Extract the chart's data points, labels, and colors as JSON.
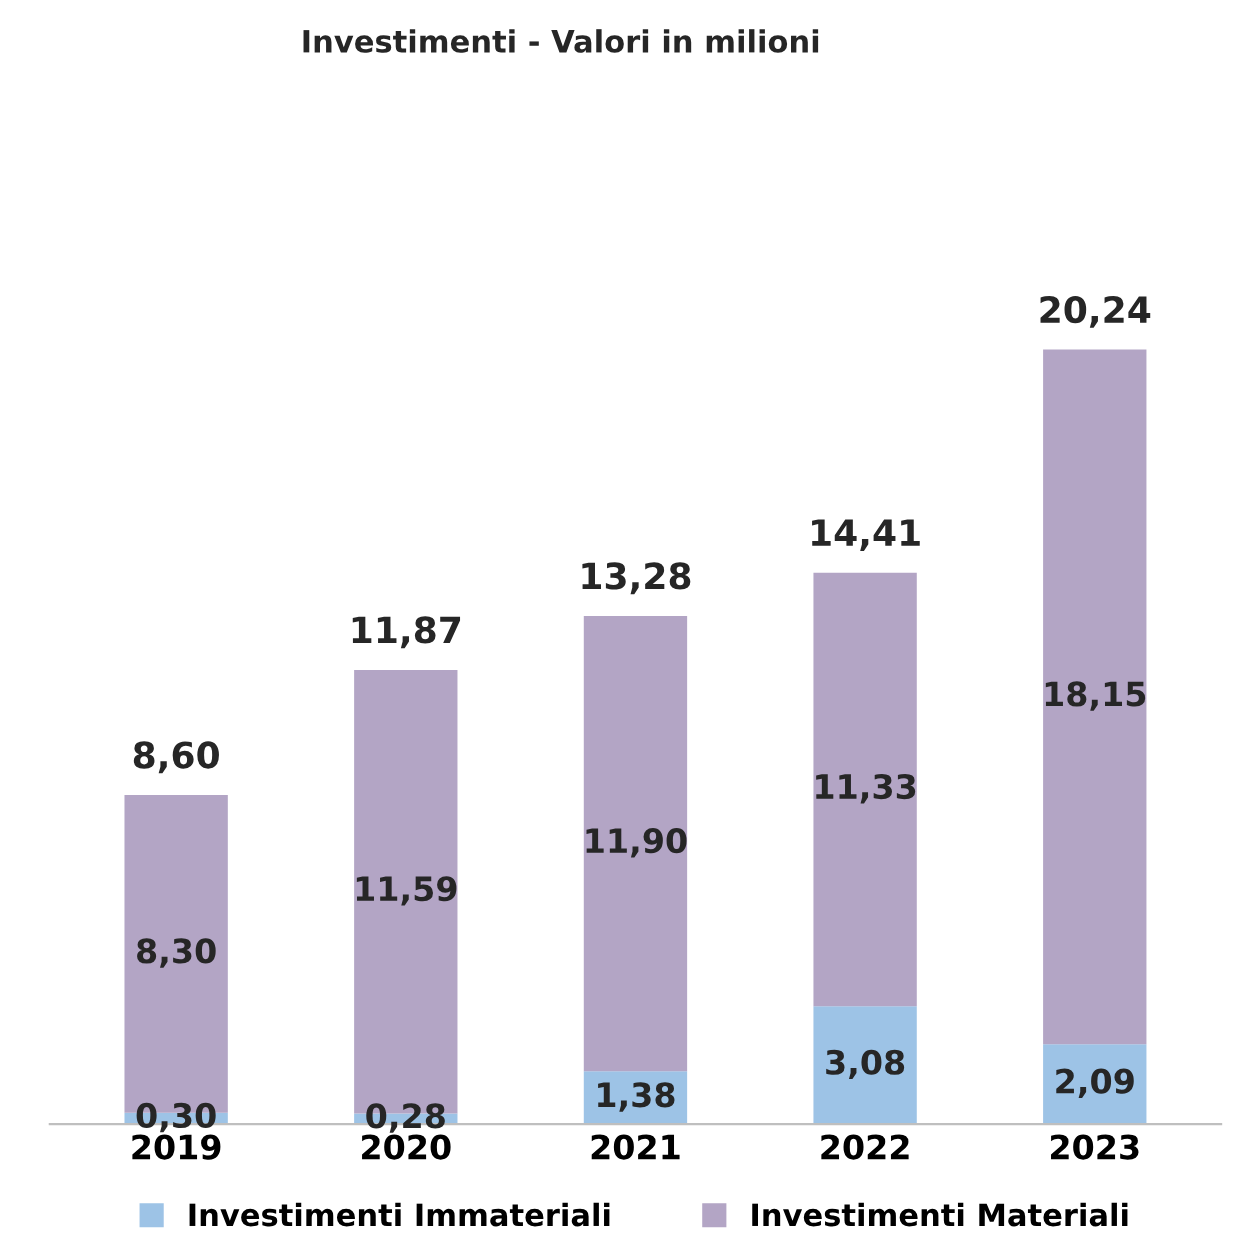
{
  "chart_data": {
    "type": "bar",
    "title": "Investimenti - Valori in milioni",
    "stacked": true,
    "categories": [
      "2019",
      "2020",
      "2021",
      "2022",
      "2023"
    ],
    "series": [
      {
        "name": "Investimenti Immateriali",
        "color": "#9dc3e6",
        "values": [
          0.3,
          0.28,
          1.38,
          3.08,
          2.09
        ],
        "value_labels": [
          "0,30",
          "0,28",
          "1,38",
          "3,08",
          "2,09"
        ]
      },
      {
        "name": "Investimenti Materiali",
        "color": "#b3a5c5",
        "values": [
          8.3,
          11.59,
          11.9,
          11.33,
          18.15
        ],
        "value_labels": [
          "8,30",
          "11,59",
          "11,90",
          "11,33",
          "18,15"
        ]
      }
    ],
    "totals": [
      "8,60",
      "11,87",
      "13,28",
      "14,41",
      "20,24"
    ],
    "legend": "bottom",
    "grid": false
  }
}
